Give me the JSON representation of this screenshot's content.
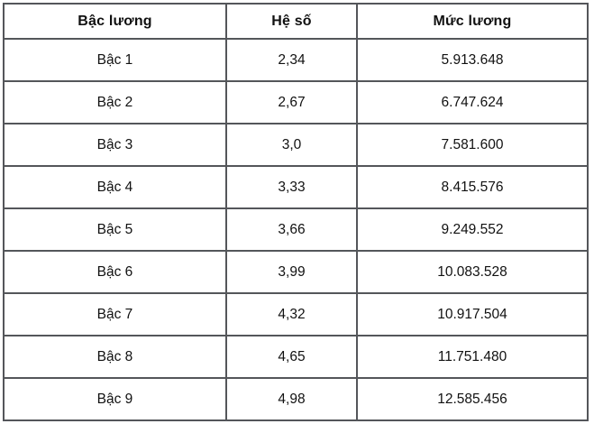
{
  "table": {
    "title": "salary-scale-table",
    "columns": {
      "grade": "Bậc lương",
      "coefficient": "Hệ số",
      "salary": "Mức lương"
    },
    "rows": [
      {
        "grade": "Bậc 1",
        "coefficient": "2,34",
        "salary": "5.913.648"
      },
      {
        "grade": "Bậc 2",
        "coefficient": "2,67",
        "salary": "6.747.624"
      },
      {
        "grade": "Bậc 3",
        "coefficient": "3,0",
        "salary": "7.581.600"
      },
      {
        "grade": "Bậc 4",
        "coefficient": "3,33",
        "salary": "8.415.576"
      },
      {
        "grade": "Bậc 5",
        "coefficient": "3,66",
        "salary": "9.249.552"
      },
      {
        "grade": "Bậc 6",
        "coefficient": "3,99",
        "salary": "10.083.528"
      },
      {
        "grade": "Bậc 7",
        "coefficient": "4,32",
        "salary": "10.917.504"
      },
      {
        "grade": "Bậc 8",
        "coefficient": "4,65",
        "salary": "11.751.480"
      },
      {
        "grade": "Bậc 9",
        "coefficient": "4,98",
        "salary": "12.585.456"
      }
    ],
    "colors": {
      "border": "#54565a",
      "text": "#111111",
      "background": "#ffffff"
    }
  }
}
